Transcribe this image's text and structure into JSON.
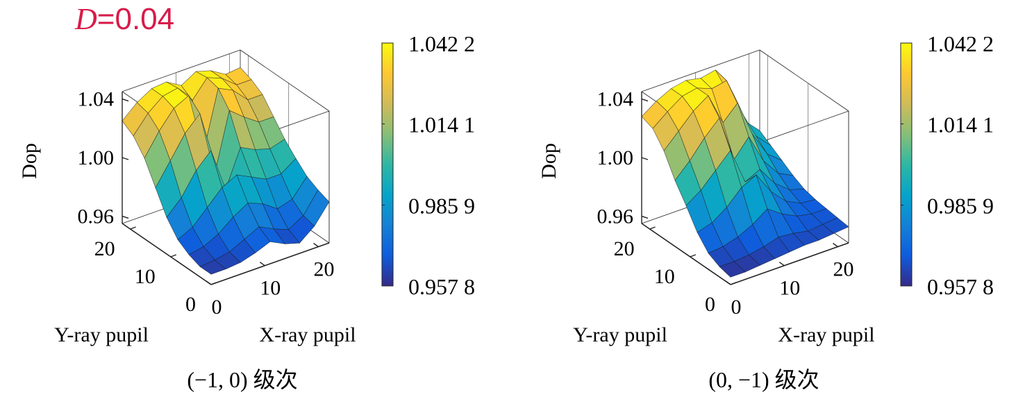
{
  "annotation": {
    "variable": "D",
    "equals": "=0.04"
  },
  "colormap": [
    "#352a87",
    "#0f5cdd",
    "#1481d6",
    "#06a4ca",
    "#2eb7a4",
    "#87bf77",
    "#d1bb59",
    "#fec832",
    "#f9fb0e"
  ],
  "chart_data": [
    {
      "type": "surface3d",
      "title": "",
      "caption": "(−1, 0) 级次",
      "xlabel": "X-ray pupil",
      "ylabel": "Y-ray pupil",
      "zlabel": "Dop",
      "x_ticks": [
        "0",
        "10",
        "20"
      ],
      "y_ticks": [
        "0",
        "10",
        "20"
      ],
      "z_ticks": [
        "0.96",
        "1.00",
        "1.04"
      ],
      "xlim": [
        0,
        22
      ],
      "ylim": [
        0,
        22
      ],
      "zlim": [
        0.955,
        1.045
      ],
      "colorbar": {
        "ticks": [
          "0.957 8",
          "0.985 9",
          "1.014 1",
          "1.042 2"
        ],
        "min": 0.9578,
        "max": 1.0422
      },
      "grid_x": [
        0,
        2.75,
        5.5,
        8.25,
        11,
        13.75,
        16.5,
        19.25,
        22
      ],
      "grid_y": [
        0,
        2.75,
        5.5,
        8.25,
        11,
        13.75,
        16.5,
        19.25,
        22
      ],
      "z": [
        [
          0.962,
          0.962,
          0.963,
          0.966,
          0.97,
          0.965,
          0.962,
          0.97,
          0.983
        ],
        [
          0.962,
          0.963,
          0.965,
          0.97,
          0.975,
          0.97,
          0.966,
          0.972,
          0.986
        ],
        [
          0.965,
          0.967,
          0.972,
          0.98,
          0.986,
          0.982,
          0.975,
          0.978,
          0.99
        ],
        [
          0.97,
          0.975,
          0.985,
          0.995,
          1.0,
          0.995,
          0.99,
          0.99,
          0.997
        ],
        [
          0.98,
          0.99,
          1.005,
          1.015,
          0.985,
          1.01,
          1.005,
          1.002,
          1.005
        ],
        [
          0.995,
          1.01,
          1.025,
          1.035,
          0.99,
          1.03,
          1.022,
          1.015,
          1.015
        ],
        [
          1.01,
          1.025,
          1.037,
          1.042,
          1.0,
          1.04,
          1.035,
          1.025,
          1.025
        ],
        [
          1.02,
          1.032,
          1.04,
          1.042,
          1.03,
          1.042,
          1.038,
          1.03,
          1.03
        ],
        [
          1.025,
          1.034,
          1.04,
          1.041,
          1.035,
          1.041,
          1.038,
          1.032,
          1.033
        ]
      ]
    },
    {
      "type": "surface3d",
      "title": "",
      "caption": "(0, −1) 级次",
      "xlabel": "X-ray pupil",
      "ylabel": "Y-ray pupil",
      "zlabel": "Dop",
      "x_ticks": [
        "0",
        "10",
        "20"
      ],
      "y_ticks": [
        "0",
        "10",
        "20"
      ],
      "z_ticks": [
        "0.96",
        "1.00",
        "1.04"
      ],
      "xlim": [
        0,
        22
      ],
      "ylim": [
        0,
        22
      ],
      "zlim": [
        0.955,
        1.045
      ],
      "colorbar": {
        "ticks": [
          "0.957 8",
          "0.985 9",
          "1.014 1",
          "1.042 2"
        ],
        "min": 0.9578,
        "max": 1.0422
      },
      "grid_x": [
        0,
        2.75,
        5.5,
        8.25,
        11,
        13.75,
        16.5,
        19.25,
        22
      ],
      "grid_y": [
        0,
        2.75,
        5.5,
        8.25,
        11,
        13.75,
        16.5,
        19.25,
        22
      ],
      "z": [
        [
          0.96,
          0.96,
          0.961,
          0.962,
          0.963,
          0.964,
          0.964,
          0.965,
          0.966
        ],
        [
          0.962,
          0.962,
          0.963,
          0.965,
          0.968,
          0.967,
          0.965,
          0.966,
          0.967
        ],
        [
          0.966,
          0.967,
          0.97,
          0.975,
          0.982,
          0.975,
          0.97,
          0.968,
          0.968
        ],
        [
          0.975,
          0.978,
          0.985,
          0.995,
          1.0,
          0.985,
          0.975,
          0.97,
          0.969
        ],
        [
          0.988,
          0.995,
          1.005,
          1.015,
          0.99,
          0.995,
          0.982,
          0.974,
          0.971
        ],
        [
          1.0,
          1.01,
          1.022,
          1.032,
          1.0,
          1.012,
          0.992,
          0.98,
          0.975
        ],
        [
          1.015,
          1.025,
          1.035,
          1.042,
          1.02,
          1.03,
          1.005,
          0.988,
          0.98
        ],
        [
          1.025,
          1.033,
          1.04,
          1.042,
          1.038,
          1.04,
          1.015,
          0.995,
          0.985
        ],
        [
          1.028,
          1.035,
          1.04,
          1.042,
          1.04,
          1.042,
          1.02,
          1.0,
          0.99
        ]
      ]
    }
  ]
}
